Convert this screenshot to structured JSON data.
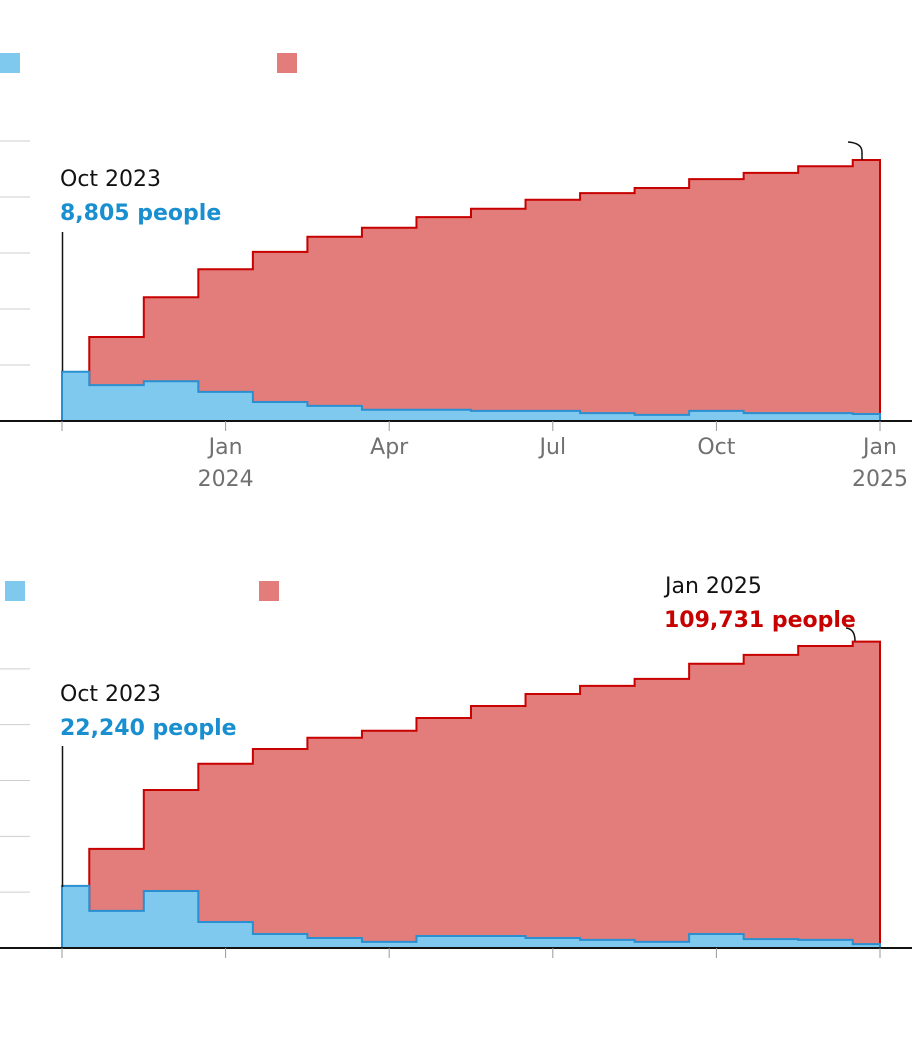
{
  "chart_data": [
    {
      "type": "step-area",
      "x": [
        "2023-10",
        "2023-11",
        "2023-12",
        "2024-01",
        "2024-02",
        "2024-03",
        "2024-04",
        "2024-05",
        "2024-06",
        "2024-07",
        "2024-08",
        "2024-09",
        "2024-10",
        "2024-11",
        "2024-12",
        "2025-01"
      ],
      "series": [
        {
          "color": "#e27d7b",
          "line_color": "#c70000",
          "values": [
            null,
            15000,
            22100,
            27100,
            30200,
            32900,
            34500,
            36400,
            37900,
            39500,
            40700,
            41600,
            43200,
            44300,
            45500,
            46600
          ]
        },
        {
          "color": "#80c9ee",
          "line_color": "#2a8fd0",
          "values": [
            8805,
            6400,
            7100,
            5200,
            3400,
            2700,
            2000,
            2000,
            1800,
            1800,
            1400,
            1100,
            1800,
            1400,
            1400,
            1250
          ]
        }
      ],
      "xlim": [
        "2023-10",
        "2025-01"
      ],
      "xticks": [
        "2023-10",
        {
          "value": "2024-01",
          "label": "Jan\n2024"
        },
        {
          "value": "2024-04",
          "label": "Apr"
        },
        {
          "value": "2024-07",
          "label": "Jul"
        },
        {
          "value": "2024-10",
          "label": "Oct"
        },
        {
          "value": "2025-01",
          "label": "Jan\n2025"
        }
      ],
      "ylim": [
        0,
        60000
      ],
      "yticks": [
        0,
        10000,
        20000,
        30000,
        40000,
        50000
      ],
      "grid": true,
      "annotations": [
        {
          "label": "Oct 2023",
          "value_label": "8,805 people",
          "value": 8805
        }
      ]
    },
    {
      "type": "step-area",
      "x": [
        "2023-10",
        "2023-11",
        "2023-12",
        "2024-01",
        "2024-02",
        "2024-03",
        "2024-04",
        "2024-05",
        "2024-06",
        "2024-07",
        "2024-08",
        "2024-09",
        "2024-10",
        "2024-11",
        "2024-12",
        "2025-01"
      ],
      "series": [
        {
          "color": "#e27d7b",
          "line_color": "#c70000",
          "values": [
            null,
            35500,
            56600,
            66000,
            71300,
            75300,
            77800,
            82400,
            86700,
            91000,
            93900,
            96400,
            101800,
            105000,
            108200,
            109731
          ]
        },
        {
          "color": "#80c9ee",
          "line_color": "#2a8fd0",
          "values": [
            22240,
            13300,
            20400,
            9300,
            5000,
            3600,
            2200,
            4300,
            4300,
            3600,
            2900,
            2200,
            5000,
            3200,
            2900,
            1400
          ]
        }
      ],
      "xlim": [
        "2023-10",
        "2025-01"
      ],
      "xticks": [
        "2023-10",
        "2024-01",
        "2024-04",
        "2024-07",
        "2024-10",
        "2025-01"
      ],
      "ylim": [
        0,
        120000
      ],
      "yticks": [
        0,
        20000,
        40000,
        60000,
        80000,
        100000
      ],
      "grid": true,
      "annotations": [
        {
          "label": "Oct 2023",
          "value_label": "22,240 people",
          "value": 22240
        },
        {
          "label": "Jan 2025",
          "value_label": "109,731 people",
          "value": 109731
        }
      ]
    }
  ]
}
